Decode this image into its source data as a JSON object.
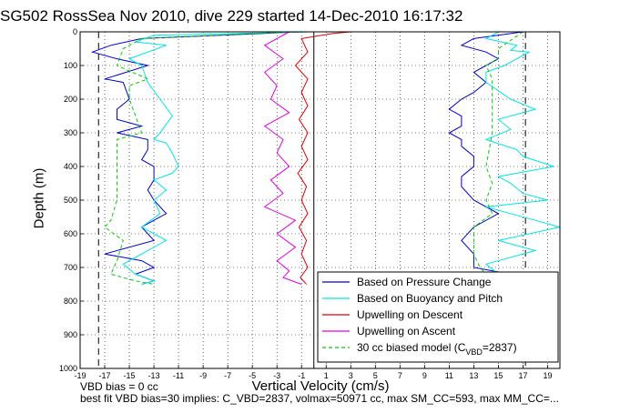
{
  "chart_data": {
    "type": "line",
    "title": "SG502 RossSea Nov 2010, dive 229 started 14-Dec-2010 16:17:32",
    "xlabel": "Vertical Velocity (cm/s)",
    "ylabel": "Depth (m)",
    "xlim": [
      -19,
      20
    ],
    "ylim": [
      1000,
      0
    ],
    "xticks": [
      -19,
      -17,
      -15,
      -13,
      -11,
      -9,
      -7,
      -5,
      -3,
      -1,
      1,
      3,
      5,
      7,
      9,
      11,
      13,
      15,
      17,
      19
    ],
    "yticks": [
      0,
      100,
      200,
      300,
      400,
      500,
      600,
      700,
      800,
      900,
      1000
    ],
    "grid": true,
    "legend_position": "bottom-right",
    "reference_lines_x": [
      -17.5,
      0,
      17.2
    ],
    "series": [
      {
        "name": "Based on Pressure Change",
        "color": "#0000cc",
        "style": "solid",
        "segments": [
          {
            "x": [
              -1,
              -14,
              -16.5,
              -18,
              -16,
              -13.5,
              -17,
              -15.5,
              -15,
              -16,
              -16,
              -14,
              -16,
              -13.5,
              -13.5,
              -14,
              -13,
              -13,
              -13,
              -13.5,
              -13,
              -12,
              -13,
              -14,
              -13,
              -17,
              -14,
              -13,
              -14.5,
              -13,
              -14
            ],
            "y": [
              0,
              20,
              40,
              60,
              80,
              100,
              140,
              150,
              200,
              230,
              260,
              280,
              300,
              320,
              350,
              380,
              400,
              420,
              440,
              470,
              500,
              540,
              560,
              580,
              620,
              660,
              680,
              700,
              720,
              740,
              750
            ]
          },
          {
            "x": [
              17,
              13,
              12,
              14,
              15,
              14,
              13,
              14,
              13,
              12,
              11,
              12,
              12,
              11,
              12,
              12,
              13,
              13,
              12,
              12,
              13,
              15,
              13,
              12,
              13,
              13,
              16
            ],
            "y": [
              0,
              20,
              40,
              60,
              80,
              100,
              120,
              150,
              180,
              200,
              230,
              250,
              280,
              300,
              320,
              340,
              370,
              400,
              430,
              460,
              500,
              540,
              580,
              620,
              660,
              700,
              720
            ]
          }
        ]
      },
      {
        "name": "Based on Buoyancy and Pitch",
        "color": "#00e5e5",
        "style": "solid",
        "segments": [
          {
            "x": [
              0,
              -13,
              -14.5,
              -12,
              -15,
              -14,
              -13.5,
              -12.5,
              -11.5,
              -12.5,
              -13,
              -12,
              -11.5,
              -11,
              -11.5,
              -13,
              -12,
              -13,
              -12.5,
              -14,
              -12,
              -14,
              -15.5,
              -14.5,
              -13,
              -14
            ],
            "y": [
              0,
              10,
              30,
              40,
              80,
              100,
              150,
              200,
              250,
              300,
              320,
              330,
              360,
              400,
              420,
              440,
              470,
              500,
              540,
              580,
              620,
              660,
              690,
              720,
              740,
              750
            ]
          },
          {
            "x": [
              15,
              14,
              16.5,
              16,
              17.5,
              15.5,
              14,
              14,
              16,
              18,
              15,
              16,
              14,
              16.5,
              17,
              19.5,
              15,
              16,
              17,
              19,
              14,
              16,
              18,
              20,
              15,
              18,
              14,
              15
            ],
            "y": [
              0,
              20,
              40,
              55,
              60,
              100,
              120,
              150,
              200,
              230,
              260,
              290,
              320,
              350,
              370,
              400,
              430,
              450,
              480,
              500,
              520,
              540,
              560,
              580,
              620,
              650,
              690,
              720
            ]
          }
        ]
      },
      {
        "name": "Upwelling on Descent",
        "color": "#e00000",
        "style": "solid",
        "segments": [
          {
            "x": [
              3,
              1.5,
              -1,
              -0.5,
              -1.5,
              -0.5,
              -1,
              -0.5,
              -1.2,
              -0.5,
              -1,
              -0.5,
              -1.3,
              -0.6,
              -1,
              -0.5,
              -1.2,
              -0.6,
              -1,
              -0.5,
              -1.1,
              -0.6
            ],
            "y": [
              0,
              5,
              20,
              60,
              100,
              140,
              180,
              220,
              260,
              300,
              340,
              380,
              420,
              460,
              500,
              540,
              580,
              620,
              660,
              700,
              730,
              750
            ]
          }
        ]
      },
      {
        "name": "Upwelling on Ascent",
        "color": "#e000e0",
        "style": "solid",
        "segments": [
          {
            "x": [
              -2,
              -4,
              -2.5,
              -4,
              -3,
              -3.5,
              -2,
              -4,
              -2.5,
              -3,
              -2,
              -3.5,
              -2.5,
              -4,
              -1.5,
              -3,
              -1.5,
              -3,
              -2,
              -2.5,
              -1
            ],
            "y": [
              0,
              40,
              80,
              120,
              160,
              200,
              240,
              280,
              320,
              360,
              400,
              440,
              480,
              520,
              560,
              600,
              640,
              680,
              710,
              730,
              750
            ]
          }
        ]
      },
      {
        "name": "30 cc biased model (C_VBD=2837)",
        "color": "#00cc00",
        "style": "dashed",
        "segments": [
          {
            "x": [
              -2,
              -14,
              -15.5,
              -16,
              -13.5,
              -15,
              -15,
              -14,
              -16,
              -16,
              -16,
              -16.5,
              -17,
              -15.5,
              -16,
              -16.5,
              -14.5,
              -13
            ],
            "y": [
              0,
              20,
              50,
              100,
              140,
              160,
              200,
              300,
              320,
              400,
              500,
              560,
              580,
              620,
              680,
              720,
              740,
              750
            ]
          },
          {
            "x": [
              17,
              15,
              15,
              14,
              14.5,
              14.5,
              14.5,
              14.5,
              14,
              14.5,
              14,
              14.5,
              13,
              13,
              13,
              13.5,
              14
            ],
            "y": [
              0,
              50,
              80,
              100,
              140,
              200,
              240,
              300,
              400,
              450,
              500,
              540,
              580,
              620,
              660,
              700,
              720
            ]
          }
        ]
      }
    ],
    "legend": [
      {
        "label": "Based on Pressure Change"
      },
      {
        "label": "Based on Buoyancy and Pitch"
      },
      {
        "label": "Upwelling on Descent"
      },
      {
        "label": "Upwelling on Ascent"
      },
      {
        "label_main": "30 cc biased model (C",
        "label_sub": "VBD",
        "label_tail": "=2837)"
      }
    ],
    "annotations": [
      "VBD bias = 0 cc",
      "best fit VBD bias=30 implies: C_VBD=2837, volmax=50971 cc, max SM_CC=593, max MM_CC=..."
    ]
  }
}
